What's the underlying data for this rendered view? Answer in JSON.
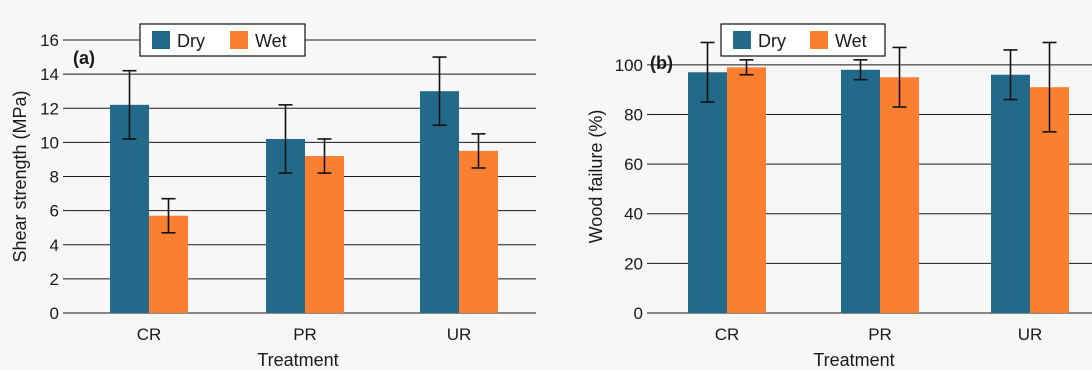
{
  "colors": {
    "dry": "#236a8a",
    "wet": "#fb7f31",
    "grid": "#1a1a1a",
    "panel_bg": "#f7f7f7"
  },
  "chart_data": [
    {
      "panel_label": "(a)",
      "type": "bar",
      "categories": [
        "CR",
        "PR",
        "UR"
      ],
      "series": [
        {
          "name": "Dry",
          "values": [
            12.2,
            10.2,
            13.0
          ],
          "errors": [
            2.0,
            2.0,
            2.0
          ]
        },
        {
          "name": "Wet",
          "values": [
            5.7,
            9.2,
            9.5
          ],
          "errors": [
            1.0,
            1.0,
            1.0
          ]
        }
      ],
      "xlabel": "Treatment",
      "ylabel": "Shear strength (MPa)",
      "ylim": [
        0,
        16
      ],
      "yticks": [
        0,
        2,
        4,
        6,
        8,
        10,
        12,
        14,
        16
      ],
      "grid": true,
      "legend": "top-center",
      "error_bars": true
    },
    {
      "panel_label": "(b)",
      "type": "bar",
      "categories": [
        "CR",
        "PR",
        "UR"
      ],
      "series": [
        {
          "name": "Dry",
          "values": [
            97,
            98,
            96
          ],
          "errors": [
            12,
            4,
            10
          ]
        },
        {
          "name": "Wet",
          "values": [
            99,
            95,
            91
          ],
          "errors": [
            3,
            12,
            18
          ]
        }
      ],
      "xlabel": "Treatment",
      "ylabel": "Wood failure (%)",
      "ylim": [
        0,
        110
      ],
      "yticks": [
        0,
        20,
        40,
        60,
        80,
        100
      ],
      "grid": true,
      "legend": "top-center",
      "error_bars": true
    }
  ]
}
